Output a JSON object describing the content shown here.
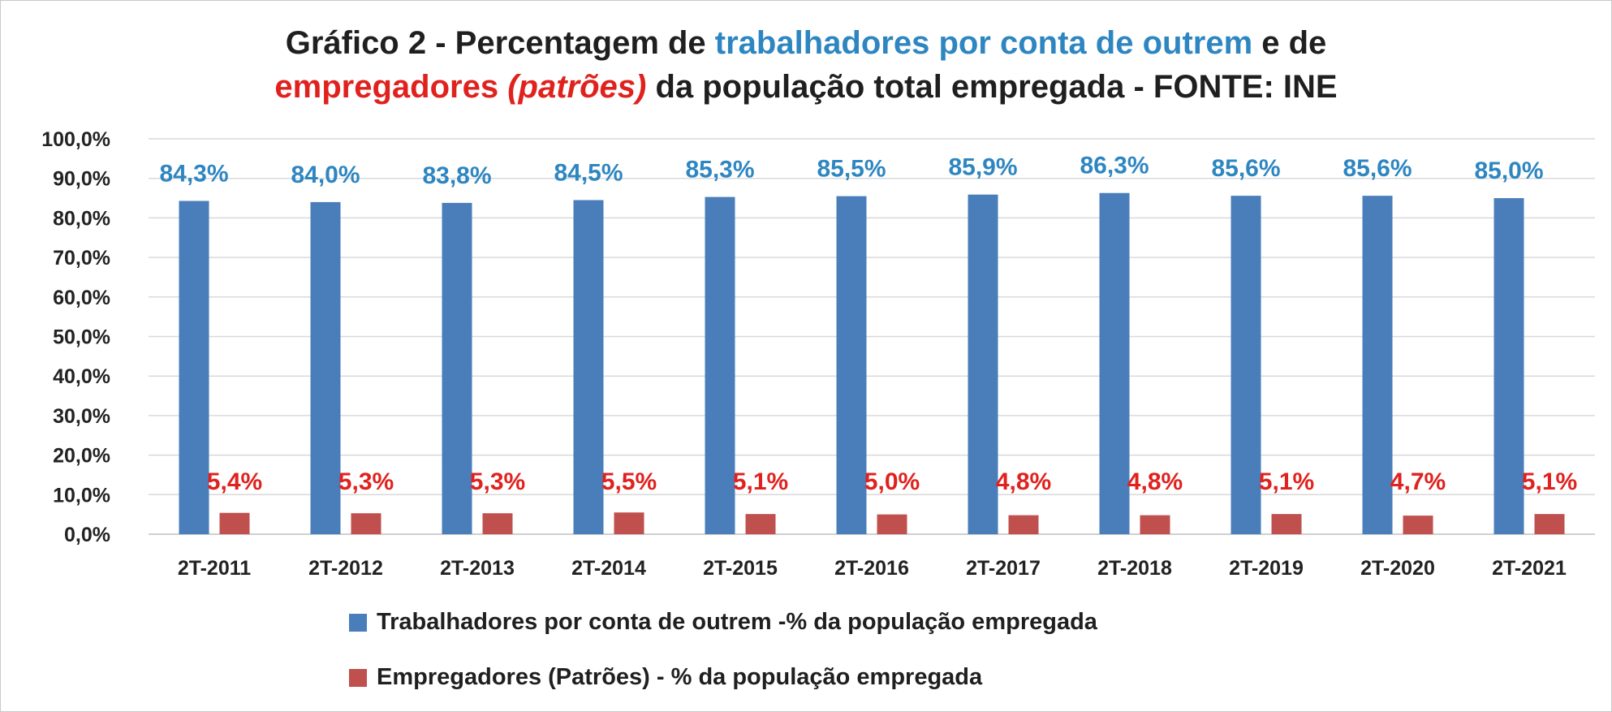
{
  "colors": {
    "series1": "#4a7ebb",
    "series2": "#c0504d",
    "label1": "#2e86c1",
    "label2": "#e0221e"
  },
  "title": {
    "part1": "Gráfico 2 - Percentagem de ",
    "part2": "trabalhadores por conta de outrem",
    "part3": " e de",
    "part4": "empregadores",
    "part5": " (patrões)",
    "part6": " da população total empregada - FONTE: INE"
  },
  "chart_data": {
    "type": "bar",
    "categories": [
      "2T-2011",
      "2T-2012",
      "2T-2013",
      "2T-2014",
      "2T-2015",
      "2T-2016",
      "2T-2017",
      "2T-2018",
      "2T-2019",
      "2T-2020",
      "2T-2021"
    ],
    "series": [
      {
        "name": "Trabalhadores por conta de outrem -% da população empregada",
        "values": [
          84.3,
          84.0,
          83.8,
          84.5,
          85.3,
          85.5,
          85.9,
          86.3,
          85.6,
          85.6,
          85.0
        ],
        "labels": [
          "84,3%",
          "84,0%",
          "83,8%",
          "84,5%",
          "85,3%",
          "85,5%",
          "85,9%",
          "86,3%",
          "85,6%",
          "85,6%",
          "85,0%"
        ]
      },
      {
        "name": "Empregadores (Patrões) - % da população empregada",
        "values": [
          5.4,
          5.3,
          5.3,
          5.5,
          5.1,
          5.0,
          4.8,
          4.8,
          5.1,
          4.7,
          5.1
        ],
        "labels": [
          "5,4%",
          "5,3%",
          "5,3%",
          "5,5%",
          "5,1%",
          "5,0%",
          "4,8%",
          "4,8%",
          "5,1%",
          "4,7%",
          "5,1%"
        ]
      }
    ],
    "ylim": [
      0,
      100
    ],
    "yticks": [
      "0,0%",
      "10,0%",
      "20,0%",
      "30,0%",
      "40,0%",
      "50,0%",
      "60,0%",
      "70,0%",
      "80,0%",
      "90,0%",
      "100,0%"
    ],
    "grid": true,
    "legend_position": "bottom"
  }
}
